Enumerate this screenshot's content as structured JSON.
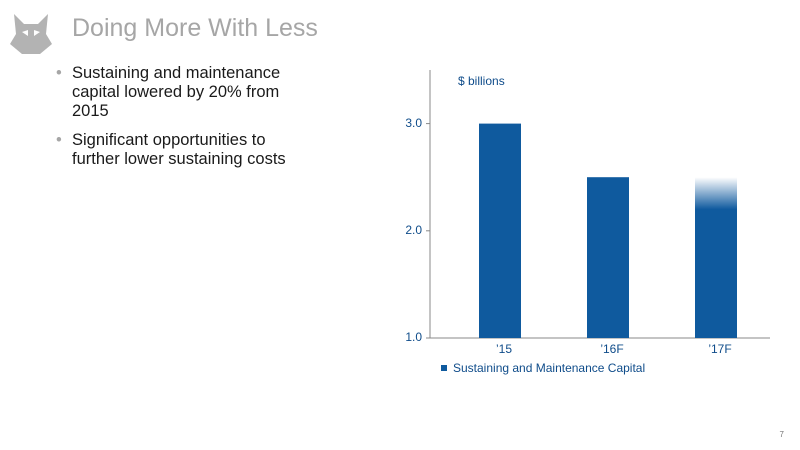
{
  "header": {
    "title": "Doing More With Less"
  },
  "bullets": [
    "Sustaining and maintenance capital lowered by 20% from 2015",
    "Significant opportunities to further lower sustaining costs"
  ],
  "chart_data": {
    "type": "bar",
    "y_label": "$ billions",
    "categories": [
      "’15",
      "’16F",
      "’17F"
    ],
    "series": [
      {
        "name": "Sustaining and Maintenance Capital",
        "color": "#0f5a9e",
        "values": [
          3.0,
          2.5,
          2.5
        ]
      }
    ],
    "ylim": [
      1,
      3.5
    ],
    "yticks": [
      {
        "value": 1,
        "label": "1.0"
      },
      {
        "value": 2,
        "label": "2.0"
      },
      {
        "value": 3,
        "label": "3.0"
      }
    ],
    "legend": "bottom-left"
  },
  "page_number": "7"
}
